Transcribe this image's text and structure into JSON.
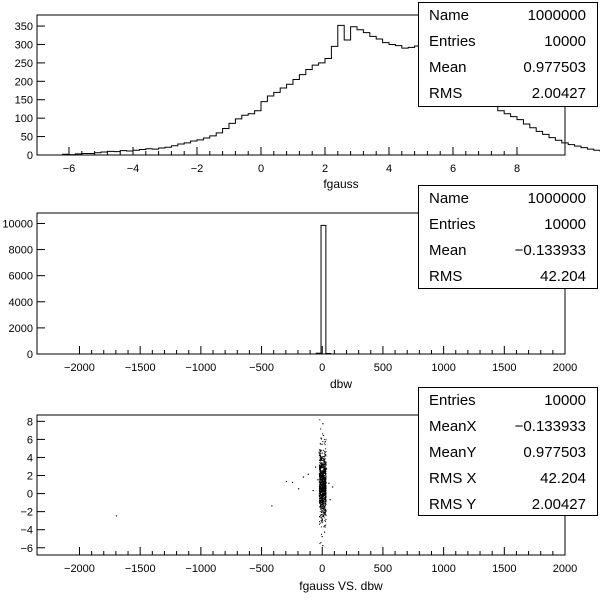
{
  "chart_data": [
    {
      "type": "histogram",
      "xlabel": "fgauss",
      "xlim": [
        -7,
        9.5
      ],
      "ylim": [
        0,
        380
      ],
      "xticks": [
        -6,
        -4,
        -2,
        0,
        2,
        4,
        6,
        8
      ],
      "yticks": [
        0,
        50,
        100,
        150,
        200,
        250,
        300,
        350
      ],
      "bin_start": -6.2,
      "bin_width": 0.2,
      "values": [
        2,
        1,
        3,
        4,
        4,
        6,
        8,
        10,
        9,
        12,
        11,
        13,
        15,
        17,
        16,
        19,
        21,
        25,
        30,
        33,
        38,
        41,
        46,
        52,
        60,
        72,
        86,
        98,
        108,
        112,
        120,
        145,
        160,
        170,
        182,
        192,
        205,
        218,
        232,
        244,
        250,
        262,
        295,
        352,
        312,
        348,
        340,
        332,
        322,
        315,
        305,
        300,
        297,
        290,
        292,
        296,
        278,
        268,
        262,
        250,
        235,
        222,
        214,
        198,
        182,
        170,
        150,
        133,
        120,
        112,
        104,
        96,
        84,
        74,
        64,
        56,
        47,
        40,
        33,
        28,
        24,
        20,
        16,
        13,
        10,
        8,
        6,
        5,
        4,
        3,
        2,
        2,
        1
      ],
      "stats": [
        {
          "key": "Name",
          "value": "1000000"
        },
        {
          "key": "Entries",
          "value": "10000"
        },
        {
          "key": "Mean",
          "value": "0.977503"
        },
        {
          "key": "RMS",
          "value": "2.00427"
        }
      ]
    },
    {
      "type": "histogram",
      "xlabel": "dbw",
      "xlim": [
        -2350,
        2000
      ],
      "ylim": [
        0,
        10800
      ],
      "xticks": [
        -2000,
        -1500,
        -1000,
        -500,
        0,
        500,
        1000,
        1500,
        2000
      ],
      "yticks": [
        0,
        2000,
        4000,
        6000,
        8000,
        10000
      ],
      "bins": [
        {
          "x0": -50,
          "x1": -10,
          "value": 60
        },
        {
          "x0": -10,
          "x1": 30,
          "value": 9850
        },
        {
          "x0": 30,
          "x1": 70,
          "value": 40
        }
      ],
      "stats": [
        {
          "key": "Name",
          "value": "1000000"
        },
        {
          "key": "Entries",
          "value": "10000"
        },
        {
          "key": "Mean",
          "value": "−0.133933"
        },
        {
          "key": "RMS",
          "value": "42.204"
        }
      ]
    },
    {
      "type": "scatter",
      "xlabel": "fgauss VS. dbw",
      "xlim": [
        -2350,
        2000
      ],
      "ylim": [
        -6.8,
        8.7
      ],
      "xticks": [
        -2000,
        -1500,
        -1000,
        -500,
        0,
        500,
        1000,
        1500,
        2000
      ],
      "yticks": [
        -6,
        -4,
        -2,
        0,
        2,
        4,
        6,
        8
      ],
      "points": [
        {
          "x": -1700,
          "y": -2.4
        },
        {
          "x": -420,
          "y": -1.3
        },
        {
          "x": -300,
          "y": 1.4
        },
        {
          "x": -250,
          "y": 1.3
        },
        {
          "x": -200,
          "y": 0.6
        },
        {
          "x": -160,
          "y": 1.9
        },
        {
          "x": -120,
          "y": 2.2
        },
        {
          "x": -80,
          "y": 0.4
        },
        {
          "x": -60,
          "y": 3.0
        },
        {
          "x": -40,
          "y": 1.6
        },
        {
          "x": 30,
          "y": 2.8
        },
        {
          "x": 50,
          "y": 1.2
        },
        {
          "x": 60,
          "y": -0.6
        },
        {
          "x": 80,
          "y": 0.8
        },
        {
          "x": -30,
          "y": 4.6
        },
        {
          "x": 20,
          "y": 5.8
        },
        {
          "x": 0,
          "y": 7.8
        },
        {
          "x": 5,
          "y": 6.5
        },
        {
          "x": -10,
          "y": -2.0
        },
        {
          "x": 10,
          "y": -3.6
        },
        {
          "x": -5,
          "y": -4.7
        },
        {
          "x": 0,
          "y": -5.7
        },
        {
          "x": 15,
          "y": -4.2
        },
        {
          "x": -15,
          "y": 6.2
        }
      ],
      "dense_band": {
        "x_center": 0,
        "x_halfwidth": 28,
        "y_mean": 0.977503,
        "y_sd": 2.00427
      },
      "stats": [
        {
          "key": "Entries",
          "value": "10000"
        },
        {
          "key": "MeanX",
          "value": "−0.133933"
        },
        {
          "key": "MeanY",
          "value": "0.977503"
        },
        {
          "key": "RMS X",
          "value": "42.204"
        },
        {
          "key": "RMS Y",
          "value": "2.00427"
        }
      ]
    }
  ]
}
